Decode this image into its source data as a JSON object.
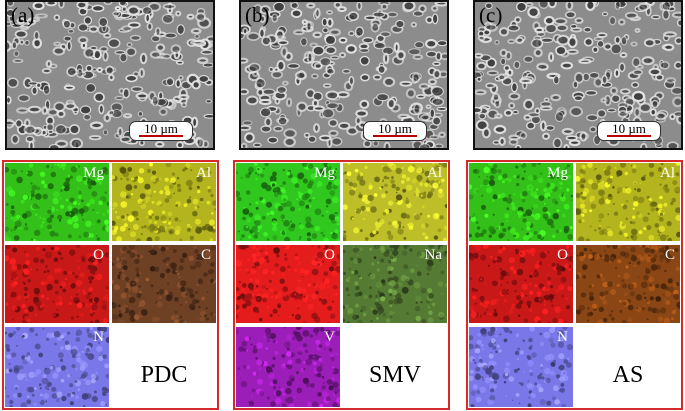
{
  "sem_panels": [
    {
      "label": "(a)",
      "scale": "10 µm"
    },
    {
      "label": "(b)",
      "scale": "10 µm"
    },
    {
      "label": "(c)",
      "scale": "10 µm"
    }
  ],
  "eds_panels": [
    {
      "sample": "PDC",
      "tiles": [
        {
          "element": "Mg",
          "color": "#33c019"
        },
        {
          "element": "Al",
          "color": "#b4b41e"
        },
        {
          "element": "O",
          "color": "#c81818"
        },
        {
          "element": "C",
          "color": "#6e4024"
        },
        {
          "element": "N",
          "color": "#7a78e8"
        }
      ]
    },
    {
      "sample": "SMV",
      "tiles": [
        {
          "element": "Mg",
          "color": "#30c81e"
        },
        {
          "element": "Al",
          "color": "#bebe28"
        },
        {
          "element": "O",
          "color": "#e41c1c"
        },
        {
          "element": "Na",
          "color": "#557a34"
        },
        {
          "element": "V",
          "color": "#9c1eb8"
        }
      ]
    },
    {
      "sample": "AS",
      "tiles": [
        {
          "element": "Mg",
          "color": "#33c019"
        },
        {
          "element": "Al",
          "color": "#b4b41e"
        },
        {
          "element": "O",
          "color": "#c81818"
        },
        {
          "element": "C",
          "color": "#8a4614"
        },
        {
          "element": "N",
          "color": "#7a78e8"
        }
      ]
    }
  ]
}
